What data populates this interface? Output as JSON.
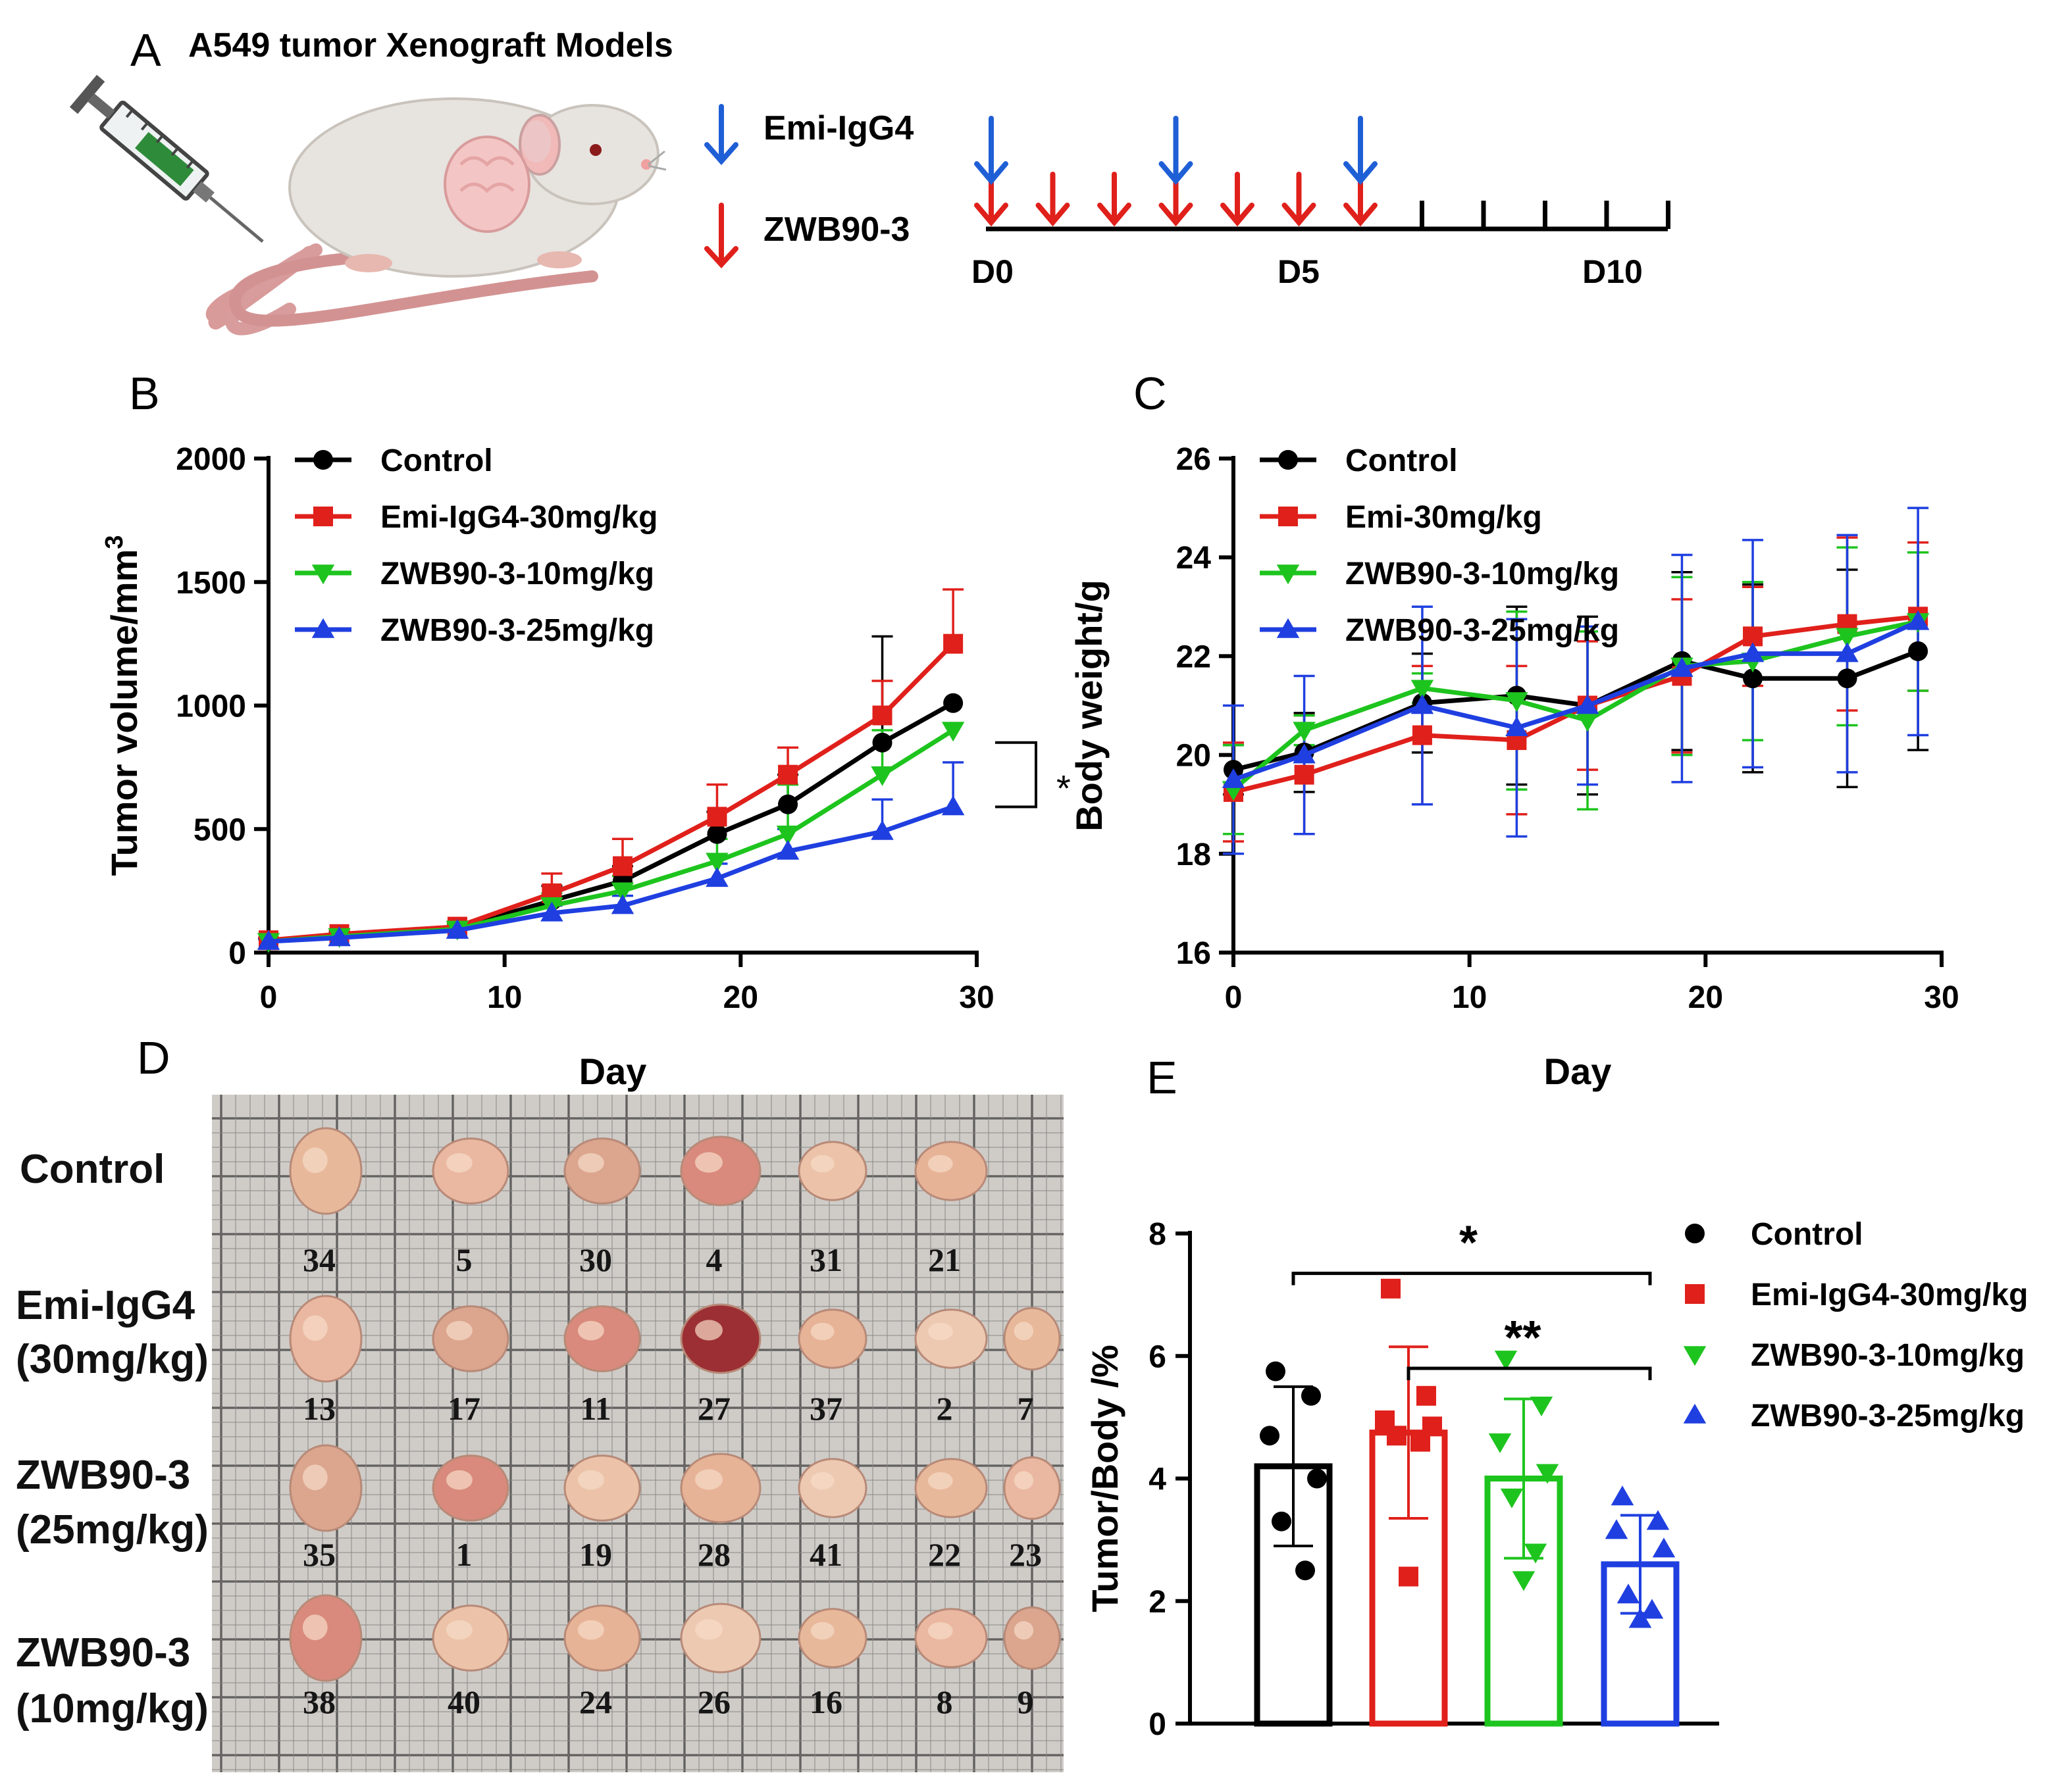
{
  "panel_a": {
    "letter": "A",
    "title": "A549 tumor Xenograft Models",
    "legend": [
      {
        "label": "Emi-IgG4",
        "color": "#1f5fd6"
      },
      {
        "label": "ZWB90-3",
        "color": "#e0201b"
      }
    ],
    "timeline_labels": [
      "D0",
      "D5",
      "D10"
    ],
    "emi_days": [
      0,
      3,
      6
    ],
    "zwb_days": [
      0,
      1,
      2,
      3,
      4,
      5,
      6
    ]
  },
  "panel_d": {
    "letter": "D",
    "rows": [
      {
        "label_lines": [
          "Control"
        ],
        "numbers": [
          "34",
          "5",
          "30",
          "4",
          "31",
          "21"
        ]
      },
      {
        "label_lines": [
          "Emi-IgG4",
          "(30mg/kg)"
        ],
        "numbers": [
          "13",
          "17",
          "11",
          "27",
          "37",
          "2",
          "7"
        ]
      },
      {
        "label_lines": [
          "ZWB90-3",
          "(25mg/kg)"
        ],
        "numbers": [
          "35",
          "1",
          "19",
          "28",
          "41",
          "22",
          "23"
        ]
      },
      {
        "label_lines": [
          "ZWB90-3",
          "(10mg/kg)"
        ],
        "numbers": [
          "38",
          "40",
          "24",
          "26",
          "16",
          "8",
          "9"
        ]
      }
    ]
  },
  "chart_data": [
    {
      "id": "B",
      "letter": "B",
      "type": "line",
      "xlabel": "Day",
      "ylabel": "Tumor volume/mm",
      "ylabel_superscript": "3",
      "xlim": [
        0,
        30
      ],
      "ylim": [
        0,
        2000
      ],
      "xticks": [
        0,
        10,
        20,
        30
      ],
      "yticks": [
        0,
        500,
        1000,
        1500,
        2000
      ],
      "x": [
        0,
        3,
        8,
        12,
        15,
        19,
        22,
        26,
        29
      ],
      "legend_position": "top-left",
      "series": [
        {
          "name": "Control",
          "color": "#000000",
          "marker": "circle",
          "values": [
            50,
            70,
            100,
            210,
            290,
            480,
            600,
            850,
            1010
          ],
          "err": [
            10,
            15,
            20,
            60,
            60,
            90,
            120,
            430,
            0
          ]
        },
        {
          "name": "Emi-IgG4-30mg/kg",
          "color": "#e0201b",
          "marker": "square",
          "values": [
            50,
            75,
            105,
            240,
            350,
            550,
            720,
            960,
            1250
          ],
          "err": [
            10,
            15,
            20,
            80,
            110,
            130,
            110,
            140,
            220
          ]
        },
        {
          "name": "ZWB90-3-10mg/kg",
          "color": "#1ec41e",
          "marker": "triangle-down",
          "values": [
            45,
            65,
            95,
            190,
            250,
            370,
            480,
            720,
            900
          ],
          "err": [
            10,
            12,
            20,
            50,
            60,
            90,
            200,
            180,
            0
          ]
        },
        {
          "name": "ZWB90-3-25mg/kg",
          "color": "#1f3fe0",
          "marker": "triangle-up",
          "values": [
            45,
            60,
            90,
            160,
            190,
            300,
            410,
            490,
            590
          ],
          "err": [
            10,
            10,
            15,
            30,
            40,
            60,
            90,
            130,
            180
          ]
        }
      ],
      "annotation": {
        "text": "*",
        "from": "Control",
        "to": "ZWB90-3-25mg/kg"
      }
    },
    {
      "id": "C",
      "letter": "C",
      "type": "line",
      "xlabel": "Day",
      "ylabel": "Body weight/g",
      "xlim": [
        0,
        30
      ],
      "ylim": [
        16,
        26
      ],
      "xticks": [
        0,
        10,
        20,
        30
      ],
      "yticks": [
        16,
        18,
        20,
        22,
        24,
        26
      ],
      "x": [
        0,
        3,
        8,
        12,
        15,
        19,
        22,
        26,
        29
      ],
      "legend_position": "top-left",
      "series": [
        {
          "name": "Control",
          "color": "#000000",
          "marker": "circle",
          "values": [
            19.7,
            20.05,
            21.05,
            21.2,
            21.0,
            21.9,
            21.55,
            21.55,
            22.1
          ],
          "err": [
            0.5,
            0.8,
            1.0,
            1.8,
            1.8,
            1.8,
            1.9,
            2.2,
            2.0
          ]
        },
        {
          "name": "Emi-30mg/kg",
          "color": "#e0201b",
          "marker": "square",
          "values": [
            19.25,
            19.6,
            20.4,
            20.3,
            21.0,
            21.6,
            22.4,
            22.65,
            22.8
          ],
          "err": [
            1.0,
            1.2,
            1.4,
            1.5,
            1.3,
            1.55,
            1.0,
            1.75,
            1.5
          ]
        },
        {
          "name": "ZWB90-3-10mg/kg",
          "color": "#1ec41e",
          "marker": "triangle-down",
          "values": [
            19.3,
            20.5,
            21.35,
            21.1,
            20.7,
            21.8,
            21.9,
            22.4,
            22.7
          ],
          "err": [
            0.9,
            0.3,
            0.3,
            1.8,
            1.8,
            1.8,
            1.6,
            1.8,
            1.4
          ]
        },
        {
          "name": "ZWB90-3-25mg/kg",
          "color": "#1f3fe0",
          "marker": "triangle-up",
          "values": [
            19.5,
            20.0,
            21.0,
            20.55,
            21.0,
            21.75,
            22.05,
            22.05,
            22.7
          ],
          "err": [
            1.5,
            1.6,
            2.0,
            2.2,
            1.6,
            2.3,
            2.3,
            2.4,
            2.3
          ]
        }
      ]
    },
    {
      "id": "E",
      "letter": "E",
      "type": "bar",
      "ylabel": "Tumor/Body /%",
      "ylim": [
        0,
        8
      ],
      "yticks": [
        0,
        2,
        4,
        6,
        8
      ],
      "legend_position": "right",
      "series": [
        {
          "name": "Control",
          "color": "#000000",
          "marker": "circle",
          "mean": 4.2,
          "sd": 1.3,
          "points": [
            5.75,
            5.35,
            4.7,
            4.0,
            3.3,
            2.5
          ]
        },
        {
          "name": "Emi-IgG4-30mg/kg",
          "color": "#e0201b",
          "marker": "square",
          "mean": 4.75,
          "sd": 1.4,
          "points": [
            7.1,
            5.35,
            4.95,
            4.85,
            4.7,
            4.6,
            2.4
          ]
        },
        {
          "name": "ZWB90-3-10mg/kg",
          "color": "#1ec41e",
          "marker": "triangle-down",
          "mean": 4.0,
          "sd": 1.3,
          "points": [
            5.95,
            5.2,
            4.6,
            4.1,
            3.7,
            2.8,
            2.35
          ]
        },
        {
          "name": "ZWB90-3-25mg/kg",
          "color": "#1f3fe0",
          "marker": "triangle-up",
          "mean": 2.6,
          "sd": 0.8,
          "points": [
            3.7,
            3.3,
            3.15,
            2.85,
            2.1,
            1.85,
            1.7
          ]
        }
      ],
      "significance": [
        {
          "text": "*",
          "from": 0,
          "to": 3,
          "level": 7.65
        },
        {
          "text": "**",
          "from": 1,
          "to": 3,
          "level": 6.1
        }
      ]
    }
  ]
}
